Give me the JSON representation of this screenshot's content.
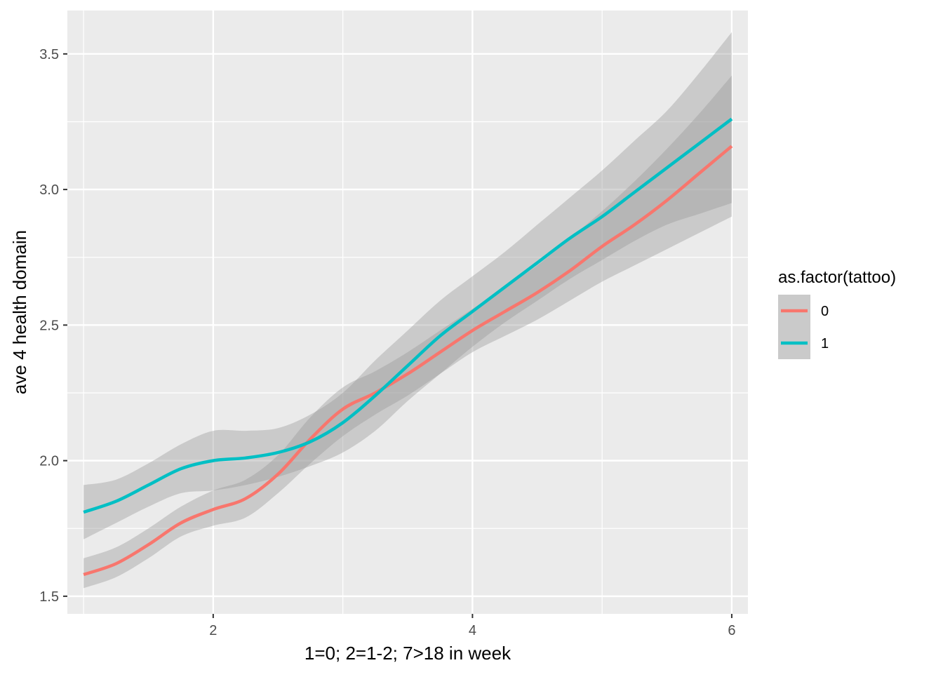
{
  "chart_data": {
    "type": "line",
    "title": "",
    "xlabel": "1=0; 2=1-2; 7>18 in week",
    "ylabel": "ave 4 health domain",
    "xlim": [
      0.875,
      6.125
    ],
    "ylim": [
      1.435,
      3.66
    ],
    "x_ticks": [
      2,
      4,
      6
    ],
    "x_tick_labels": [
      "2",
      "4",
      "6"
    ],
    "y_ticks": [
      1.5,
      2.0,
      2.5,
      3.0,
      3.5
    ],
    "y_tick_labels": [
      "1.5",
      "2.0",
      "2.5",
      "3.0",
      "3.5"
    ],
    "grid": true,
    "legend": {
      "title": "as.factor(tattoo)",
      "position": "right",
      "labels": [
        "0",
        "1"
      ]
    },
    "series": [
      {
        "name": "0",
        "color": "#F8766D",
        "x": [
          1.0,
          1.25,
          1.5,
          1.75,
          2.0,
          2.25,
          2.5,
          2.75,
          3.0,
          3.25,
          3.5,
          3.75,
          4.0,
          4.25,
          4.5,
          4.75,
          5.0,
          5.25,
          5.5,
          5.75,
          6.0
        ],
        "y": [
          1.58,
          1.62,
          1.69,
          1.77,
          1.82,
          1.86,
          1.95,
          2.08,
          2.19,
          2.25,
          2.32,
          2.4,
          2.48,
          2.55,
          2.62,
          2.7,
          2.79,
          2.87,
          2.96,
          3.06,
          3.16
        ],
        "lower": [
          1.53,
          1.57,
          1.64,
          1.72,
          1.76,
          1.79,
          1.88,
          1.99,
          2.09,
          2.17,
          2.24,
          2.32,
          2.4,
          2.46,
          2.52,
          2.59,
          2.66,
          2.72,
          2.78,
          2.84,
          2.9
        ],
        "upper": [
          1.64,
          1.68,
          1.75,
          1.83,
          1.89,
          1.93,
          2.02,
          2.16,
          2.27,
          2.33,
          2.4,
          2.48,
          2.56,
          2.64,
          2.72,
          2.82,
          2.92,
          3.03,
          3.15,
          3.28,
          3.42
        ]
      },
      {
        "name": "1",
        "color": "#00BFC4",
        "x": [
          1.0,
          1.25,
          1.5,
          1.75,
          2.0,
          2.25,
          2.5,
          2.75,
          3.0,
          3.25,
          3.5,
          3.75,
          4.0,
          4.25,
          4.5,
          4.75,
          5.0,
          5.25,
          5.5,
          5.75,
          6.0
        ],
        "y": [
          1.81,
          1.85,
          1.91,
          1.97,
          2.0,
          2.01,
          2.03,
          2.07,
          2.14,
          2.24,
          2.35,
          2.46,
          2.55,
          2.64,
          2.73,
          2.82,
          2.9,
          2.99,
          3.08,
          3.17,
          3.26
        ],
        "lower": [
          1.71,
          1.77,
          1.83,
          1.88,
          1.89,
          1.91,
          1.94,
          1.98,
          2.03,
          2.11,
          2.22,
          2.32,
          2.42,
          2.51,
          2.59,
          2.67,
          2.74,
          2.81,
          2.87,
          2.91,
          2.95
        ],
        "upper": [
          1.91,
          1.93,
          1.99,
          2.06,
          2.11,
          2.11,
          2.12,
          2.17,
          2.25,
          2.37,
          2.48,
          2.59,
          2.68,
          2.77,
          2.87,
          2.97,
          3.07,
          3.18,
          3.29,
          3.43,
          3.58
        ]
      }
    ]
  }
}
